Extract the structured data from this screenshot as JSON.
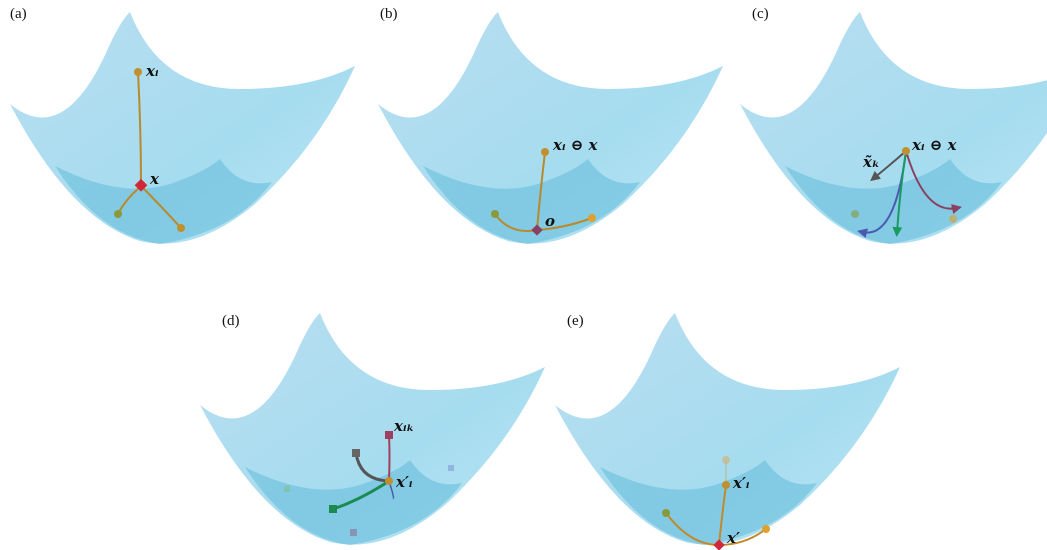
{
  "panels": [
    {
      "label": "(a)",
      "annotations": [
        "xᵢ",
        "x"
      ]
    },
    {
      "label": "(b)",
      "annotations": [
        "xᵢ ⊖ x",
        "o"
      ]
    },
    {
      "label": "(c)",
      "annotations": [
        "x̃ₖ",
        "xᵢ ⊖ x"
      ]
    },
    {
      "label": "(d)",
      "annotations": [
        "xᵢₖ",
        "x′ᵢ"
      ]
    },
    {
      "label": "(e)",
      "annotations": [
        "x′ᵢ",
        "x′"
      ]
    }
  ]
}
